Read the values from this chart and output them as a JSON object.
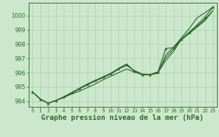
{
  "background_color": "#cce8cc",
  "grid_color": "#aaccaa",
  "line_color": "#2d6a2d",
  "marker_color": "#2d6a2d",
  "xlabel": "Graphe pression niveau de la mer (hPa)",
  "xlabel_fontsize": 7.5,
  "xlim": [
    -0.5,
    23.5
  ],
  "ylim": [
    993.6,
    1000.9
  ],
  "yticks": [
    994,
    995,
    996,
    997,
    998,
    999,
    1000
  ],
  "xticks": [
    0,
    1,
    2,
    3,
    4,
    5,
    6,
    7,
    8,
    9,
    10,
    11,
    12,
    13,
    14,
    15,
    16,
    17,
    18,
    19,
    20,
    21,
    22,
    23
  ],
  "hours": [
    0,
    1,
    2,
    3,
    4,
    5,
    6,
    7,
    8,
    9,
    10,
    11,
    12,
    13,
    14,
    15,
    16,
    17,
    18,
    19,
    20,
    21,
    22,
    23
  ],
  "line1": [
    994.65,
    994.15,
    993.85,
    994.05,
    994.25,
    994.5,
    994.7,
    994.95,
    995.2,
    995.5,
    995.75,
    996.0,
    996.25,
    996.05,
    995.85,
    995.85,
    995.95,
    997.25,
    997.8,
    998.45,
    999.1,
    999.85,
    1000.2,
    1000.6
  ],
  "line2": [
    994.65,
    994.15,
    993.85,
    994.05,
    994.3,
    994.55,
    994.85,
    995.15,
    995.4,
    995.65,
    995.9,
    996.25,
    996.5,
    996.15,
    995.9,
    995.87,
    996.0,
    996.85,
    997.5,
    998.35,
    998.8,
    999.25,
    999.75,
    1000.35
  ],
  "line3": [
    994.65,
    994.15,
    993.85,
    994.05,
    994.3,
    994.6,
    994.9,
    995.2,
    995.45,
    995.7,
    995.95,
    996.3,
    996.6,
    996.1,
    995.87,
    995.87,
    996.05,
    997.05,
    997.65,
    998.3,
    998.75,
    999.2,
    999.65,
    1000.35
  ],
  "line4_marked": [
    994.65,
    994.15,
    993.85,
    994.05,
    994.3,
    994.6,
    994.9,
    995.2,
    995.45,
    995.7,
    995.95,
    996.3,
    996.6,
    996.1,
    995.87,
    995.87,
    996.05,
    997.7,
    997.75,
    998.35,
    998.85,
    999.35,
    999.9,
    1000.6
  ]
}
